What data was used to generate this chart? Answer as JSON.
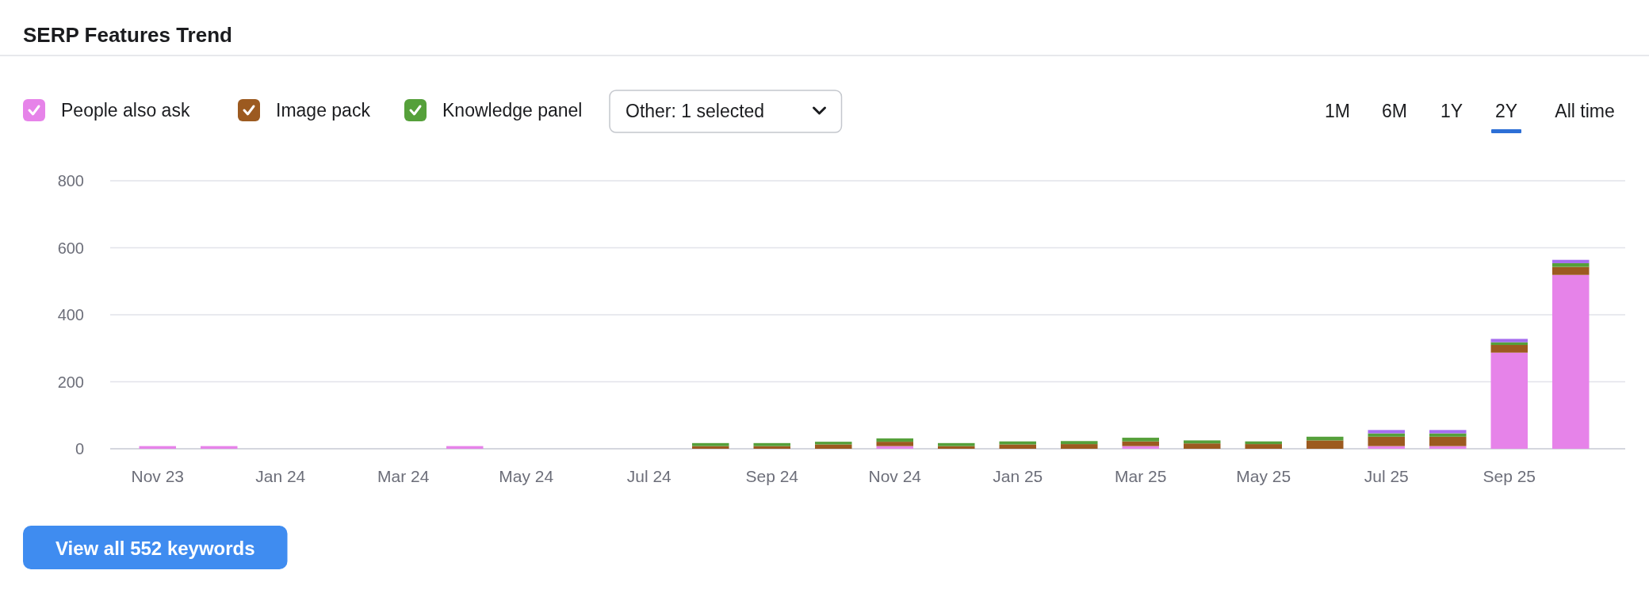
{
  "chart_data": {
    "type": "bar",
    "title": "SERP Features Trend",
    "stacked": true,
    "legend": "top left",
    "grid": "y",
    "categories": [
      "Nov 23",
      null,
      "Jan 24",
      null,
      "Mar 24",
      null,
      "May 24",
      null,
      "Jul 24",
      null,
      "Sep 24",
      null,
      "Nov 24",
      null,
      "Jan 25",
      null,
      "Mar 25",
      null,
      "May 25",
      null,
      "Jul 25",
      null,
      "Sep 25",
      null
    ],
    "ylim": [
      0,
      800
    ],
    "yticks": [
      0,
      200,
      400,
      600,
      800
    ],
    "series": [
      {
        "name": "People also ask",
        "color": "#e683e9",
        "values": [
          8,
          8,
          0,
          0,
          0,
          8,
          0,
          0,
          0,
          0,
          0,
          0,
          8,
          0,
          0,
          0,
          8,
          0,
          0,
          0,
          8,
          8,
          287,
          519
        ]
      },
      {
        "name": "Image pack",
        "color": "#9c5a20",
        "values": [
          0,
          0,
          0,
          0,
          0,
          0,
          0,
          0,
          0,
          8,
          8,
          13,
          13,
          8,
          13,
          14,
          14,
          16,
          14,
          25,
          28,
          28,
          23,
          24
        ]
      },
      {
        "name": "Knowledge panel",
        "color": "#55a03a",
        "values": [
          0,
          0,
          0,
          0,
          0,
          0,
          0,
          0,
          0,
          9,
          9,
          8,
          10,
          9,
          9,
          9,
          11,
          9,
          8,
          11,
          10,
          10,
          8,
          11
        ]
      },
      {
        "color": "#a56cf0",
        "values": [
          0,
          0,
          0,
          0,
          0,
          0,
          0,
          0,
          0,
          0,
          0,
          0,
          0,
          0,
          0,
          0,
          0,
          0,
          0,
          0,
          10,
          10,
          10,
          10
        ]
      }
    ],
    "annotations": [
      "Other: 1 selected",
      "1M",
      "6M",
      "1Y",
      "2Y",
      "All time",
      "View all 552 keywords"
    ]
  }
}
